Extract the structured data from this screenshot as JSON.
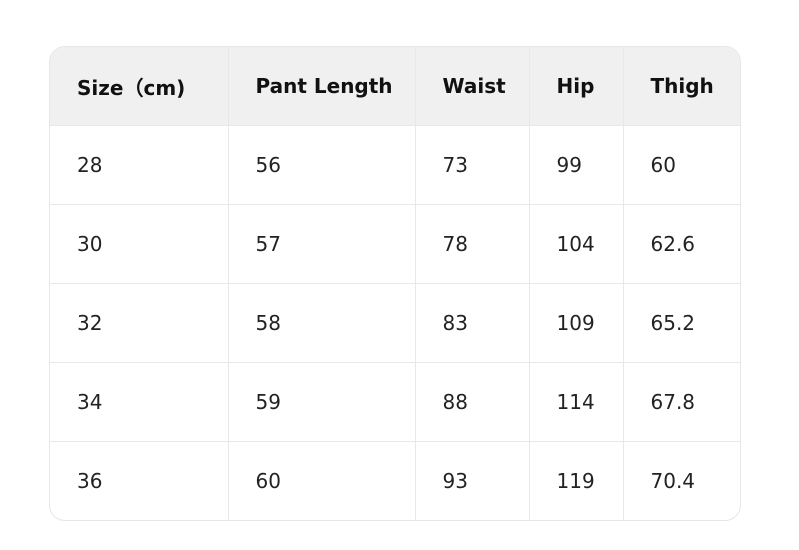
{
  "table": {
    "headers": [
      "Size（cm)",
      "Pant Length",
      "Waist",
      "Hip",
      "Thigh"
    ],
    "rows": [
      [
        "28",
        "56",
        "73",
        "99",
        "60"
      ],
      [
        "30",
        "57",
        "78",
        "104",
        "62.6"
      ],
      [
        "32",
        "58",
        "83",
        "109",
        "65.2"
      ],
      [
        "34",
        "59",
        "88",
        "114",
        "67.8"
      ],
      [
        "36",
        "60",
        "93",
        "119",
        "70.4"
      ]
    ]
  }
}
